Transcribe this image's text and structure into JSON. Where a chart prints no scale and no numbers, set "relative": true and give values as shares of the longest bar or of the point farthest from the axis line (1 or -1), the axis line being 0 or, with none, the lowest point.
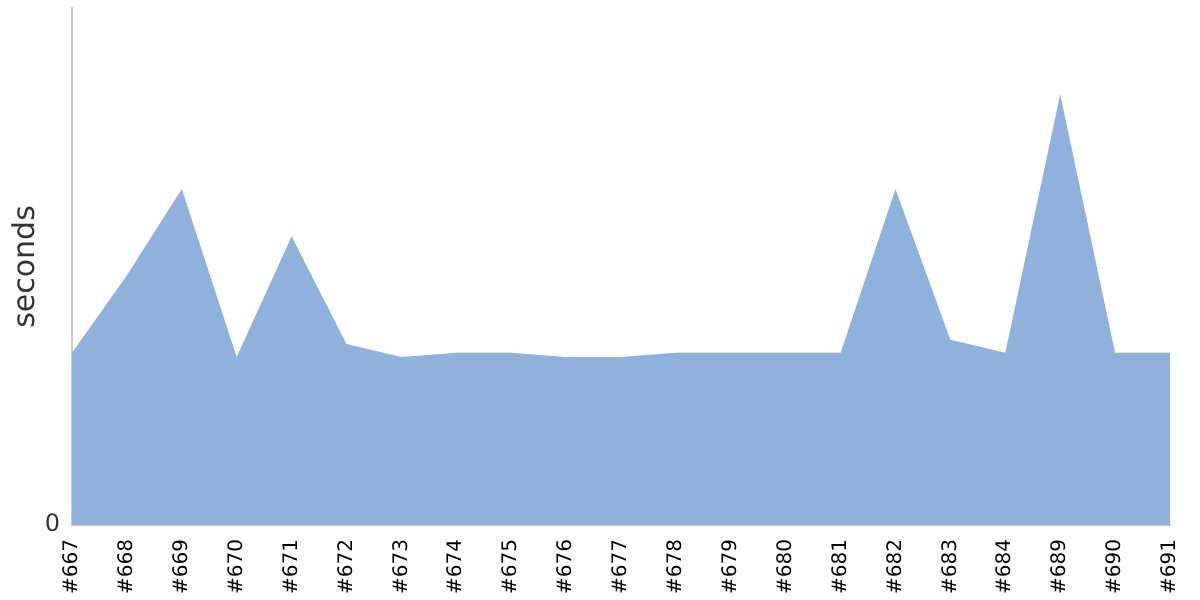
{
  "chart_data": {
    "type": "area",
    "ylabel": "seconds",
    "relative": true,
    "annotations": [
      "0"
    ],
    "grid": false,
    "legend": false,
    "categories": [
      "#667",
      "#668",
      "#669",
      "#670",
      "#671",
      "#672",
      "#673",
      "#674",
      "#675",
      "#676",
      "#677",
      "#678",
      "#679",
      "#680",
      "#681",
      "#682",
      "#683",
      "#684",
      "#689",
      "#690",
      "#691"
    ],
    "series": [
      {
        "color": "#8fb1db",
        "values": [
          0.4,
          0.58,
          0.78,
          0.39,
          0.67,
          0.42,
          0.39,
          0.4,
          0.4,
          0.39,
          0.39,
          0.4,
          0.4,
          0.4,
          0.4,
          0.78,
          0.43,
          0.4,
          1,
          0.4,
          0.4
        ]
      }
    ]
  }
}
